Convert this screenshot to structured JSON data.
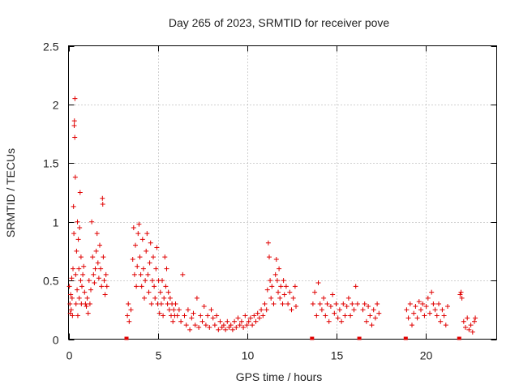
{
  "chart_data": {
    "type": "scatter",
    "title": "Day 265 of 2023, SRMTID for receiver pove",
    "xlabel": "GPS time / hours",
    "ylabel": "SRMTID / TECUs",
    "xlim": [
      0,
      24
    ],
    "ylim": [
      0,
      2.5
    ],
    "x_ticks": [
      0,
      5,
      10,
      15,
      20
    ],
    "y_ticks": [
      0,
      0.5,
      1,
      1.5,
      2,
      2.5
    ],
    "x_tick_labels": [
      "0",
      "5",
      "10",
      "15",
      "20"
    ],
    "y_tick_labels": [
      "0",
      "0.5",
      "1",
      "1.5",
      "2",
      "2.5"
    ],
    "grid": true,
    "marker": "plus",
    "color": "#e00000",
    "gap_markers_x": [
      3.25,
      13.65,
      16.3,
      18.9,
      21.9
    ],
    "series": [
      {
        "name": "SRMTID",
        "points": [
          [
            0.05,
            0.45
          ],
          [
            0.08,
            0.3
          ],
          [
            0.1,
            0.22
          ],
          [
            0.12,
            0.38
          ],
          [
            0.15,
            0.25
          ],
          [
            0.18,
            0.52
          ],
          [
            0.2,
            0.35
          ],
          [
            0.22,
            0.2
          ],
          [
            0.25,
            0.6
          ],
          [
            0.28,
            1.13
          ],
          [
            0.3,
            0.9
          ],
          [
            0.32,
            1.82
          ],
          [
            0.33,
            1.86
          ],
          [
            0.35,
            1.72
          ],
          [
            0.36,
            2.05
          ],
          [
            0.38,
            1.38
          ],
          [
            0.4,
            0.55
          ],
          [
            0.42,
            0.3
          ],
          [
            0.45,
            0.75
          ],
          [
            0.48,
            0.42
          ],
          [
            0.5,
            1.0
          ],
          [
            0.52,
            0.2
          ],
          [
            0.55,
            0.85
          ],
          [
            0.58,
            0.6
          ],
          [
            0.6,
            0.35
          ],
          [
            0.62,
            0.95
          ],
          [
            0.65,
            1.25
          ],
          [
            0.68,
            0.5
          ],
          [
            0.7,
            0.7
          ],
          [
            0.72,
            0.3
          ],
          [
            0.75,
            0.45
          ],
          [
            0.8,
            0.55
          ],
          [
            0.85,
            0.62
          ],
          [
            0.9,
            0.4
          ],
          [
            0.95,
            0.3
          ],
          [
            1.0,
            0.28
          ],
          [
            1.05,
            0.35
          ],
          [
            1.1,
            0.22
          ],
          [
            1.15,
            0.5
          ],
          [
            1.2,
            0.3
          ],
          [
            1.25,
            0.42
          ],
          [
            1.3,
            1.0
          ],
          [
            1.35,
            0.7
          ],
          [
            1.4,
            0.55
          ],
          [
            1.45,
            0.48
          ],
          [
            1.5,
            0.6
          ],
          [
            1.55,
            0.75
          ],
          [
            1.6,
            0.9
          ],
          [
            1.65,
            0.65
          ],
          [
            1.7,
            0.52
          ],
          [
            1.75,
            0.8
          ],
          [
            1.8,
            0.6
          ],
          [
            1.85,
            0.45
          ],
          [
            1.9,
            1.2
          ],
          [
            1.92,
            1.15
          ],
          [
            1.95,
            0.7
          ],
          [
            2.0,
            0.5
          ],
          [
            2.05,
            0.38
          ],
          [
            2.1,
            0.55
          ],
          [
            2.15,
            0.45
          ],
          [
            3.3,
            0.2
          ],
          [
            3.35,
            0.3
          ],
          [
            3.4,
            0.15
          ],
          [
            3.5,
            0.25
          ],
          [
            3.6,
            0.68
          ],
          [
            3.65,
            0.95
          ],
          [
            3.7,
            0.55
          ],
          [
            3.75,
            0.8
          ],
          [
            3.8,
            0.45
          ],
          [
            3.85,
            0.62
          ],
          [
            3.9,
            0.9
          ],
          [
            3.95,
            0.98
          ],
          [
            4.0,
            0.7
          ],
          [
            4.05,
            0.55
          ],
          [
            4.1,
            0.45
          ],
          [
            4.15,
            0.85
          ],
          [
            4.2,
            0.6
          ],
          [
            4.25,
            0.35
          ],
          [
            4.3,
            0.5
          ],
          [
            4.35,
            0.75
          ],
          [
            4.4,
            0.9
          ],
          [
            4.45,
            0.55
          ],
          [
            4.5,
            0.4
          ],
          [
            4.55,
            0.65
          ],
          [
            4.6,
            0.82
          ],
          [
            4.65,
            0.3
          ],
          [
            4.7,
            0.5
          ],
          [
            4.75,
            0.7
          ],
          [
            4.8,
            0.45
          ],
          [
            4.85,
            0.35
          ],
          [
            4.9,
            0.6
          ],
          [
            4.95,
            0.78
          ],
          [
            5.0,
            0.3
          ],
          [
            5.05,
            0.5
          ],
          [
            5.1,
            0.22
          ],
          [
            5.15,
            0.4
          ],
          [
            5.2,
            0.3
          ],
          [
            5.25,
            0.5
          ],
          [
            5.3,
            0.2
          ],
          [
            5.35,
            0.35
          ],
          [
            5.4,
            0.7
          ],
          [
            5.45,
            0.45
          ],
          [
            5.5,
            0.6
          ],
          [
            5.55,
            0.3
          ],
          [
            5.6,
            0.4
          ],
          [
            5.65,
            0.25
          ],
          [
            5.7,
            0.35
          ],
          [
            5.75,
            0.2
          ],
          [
            5.8,
            0.3
          ],
          [
            5.85,
            0.15
          ],
          [
            5.9,
            0.25
          ],
          [
            5.95,
            0.2
          ],
          [
            6.0,
            0.3
          ],
          [
            6.1,
            0.2
          ],
          [
            6.2,
            0.25
          ],
          [
            6.3,
            0.15
          ],
          [
            6.4,
            0.55
          ],
          [
            6.5,
            0.2
          ],
          [
            6.6,
            0.12
          ],
          [
            6.7,
            0.25
          ],
          [
            6.8,
            0.08
          ],
          [
            6.9,
            0.18
          ],
          [
            7.0,
            0.22
          ],
          [
            7.1,
            0.12
          ],
          [
            7.2,
            0.35
          ],
          [
            7.3,
            0.1
          ],
          [
            7.4,
            0.2
          ],
          [
            7.5,
            0.15
          ],
          [
            7.6,
            0.28
          ],
          [
            7.7,
            0.12
          ],
          [
            7.8,
            0.2
          ],
          [
            7.9,
            0.1
          ],
          [
            8.0,
            0.25
          ],
          [
            8.1,
            0.18
          ],
          [
            8.2,
            0.12
          ],
          [
            8.3,
            0.2
          ],
          [
            8.4,
            0.08
          ],
          [
            8.5,
            0.15
          ],
          [
            8.6,
            0.1
          ],
          [
            8.7,
            0.12
          ],
          [
            8.8,
            0.08
          ],
          [
            8.9,
            0.15
          ],
          [
            9.0,
            0.1
          ],
          [
            9.1,
            0.12
          ],
          [
            9.2,
            0.08
          ],
          [
            9.3,
            0.15
          ],
          [
            9.4,
            0.1
          ],
          [
            9.5,
            0.18
          ],
          [
            9.6,
            0.12
          ],
          [
            9.7,
            0.15
          ],
          [
            9.8,
            0.1
          ],
          [
            9.9,
            0.2
          ],
          [
            10.0,
            0.12
          ],
          [
            10.1,
            0.15
          ],
          [
            10.2,
            0.18
          ],
          [
            10.3,
            0.12
          ],
          [
            10.4,
            0.2
          ],
          [
            10.5,
            0.15
          ],
          [
            10.6,
            0.22
          ],
          [
            10.7,
            0.18
          ],
          [
            10.8,
            0.25
          ],
          [
            10.9,
            0.2
          ],
          [
            11.0,
            0.3
          ],
          [
            11.1,
            0.25
          ],
          [
            11.15,
            0.42
          ],
          [
            11.2,
            0.82
          ],
          [
            11.25,
            0.7
          ],
          [
            11.3,
            0.5
          ],
          [
            11.35,
            0.35
          ],
          [
            11.4,
            0.45
          ],
          [
            11.5,
            0.3
          ],
          [
            11.6,
            0.55
          ],
          [
            11.65,
            0.68
          ],
          [
            11.7,
            0.5
          ],
          [
            11.75,
            0.4
          ],
          [
            11.8,
            0.6
          ],
          [
            11.85,
            0.35
          ],
          [
            11.9,
            0.45
          ],
          [
            12.0,
            0.3
          ],
          [
            12.05,
            0.5
          ],
          [
            12.1,
            0.38
          ],
          [
            12.2,
            0.45
          ],
          [
            12.3,
            0.3
          ],
          [
            12.4,
            0.4
          ],
          [
            12.5,
            0.25
          ],
          [
            12.6,
            0.35
          ],
          [
            12.7,
            0.45
          ],
          [
            12.75,
            0.28
          ],
          [
            13.7,
            0.3
          ],
          [
            13.8,
            0.4
          ],
          [
            13.9,
            0.2
          ],
          [
            14.0,
            0.48
          ],
          [
            14.1,
            0.3
          ],
          [
            14.2,
            0.25
          ],
          [
            14.3,
            0.35
          ],
          [
            14.4,
            0.2
          ],
          [
            14.5,
            0.3
          ],
          [
            14.6,
            0.15
          ],
          [
            14.7,
            0.28
          ],
          [
            14.8,
            0.38
          ],
          [
            14.9,
            0.22
          ],
          [
            15.0,
            0.3
          ],
          [
            15.1,
            0.18
          ],
          [
            15.2,
            0.25
          ],
          [
            15.3,
            0.15
          ],
          [
            15.4,
            0.3
          ],
          [
            15.5,
            0.2
          ],
          [
            15.6,
            0.28
          ],
          [
            15.7,
            0.35
          ],
          [
            15.8,
            0.2
          ],
          [
            15.9,
            0.3
          ],
          [
            16.0,
            0.25
          ],
          [
            16.1,
            0.45
          ],
          [
            16.2,
            0.3
          ],
          [
            16.5,
            0.25
          ],
          [
            16.6,
            0.3
          ],
          [
            16.7,
            0.15
          ],
          [
            16.8,
            0.28
          ],
          [
            16.9,
            0.2
          ],
          [
            17.0,
            0.12
          ],
          [
            17.1,
            0.25
          ],
          [
            17.2,
            0.18
          ],
          [
            17.3,
            0.3
          ],
          [
            17.4,
            0.22
          ],
          [
            18.95,
            0.25
          ],
          [
            19.05,
            0.18
          ],
          [
            19.15,
            0.3
          ],
          [
            19.25,
            0.12
          ],
          [
            19.35,
            0.22
          ],
          [
            19.45,
            0.28
          ],
          [
            19.55,
            0.18
          ],
          [
            19.65,
            0.32
          ],
          [
            19.75,
            0.25
          ],
          [
            19.85,
            0.3
          ],
          [
            19.95,
            0.2
          ],
          [
            20.05,
            0.28
          ],
          [
            20.15,
            0.35
          ],
          [
            20.25,
            0.22
          ],
          [
            20.35,
            0.4
          ],
          [
            20.45,
            0.3
          ],
          [
            20.55,
            0.25
          ],
          [
            20.65,
            0.2
          ],
          [
            20.75,
            0.3
          ],
          [
            20.85,
            0.15
          ],
          [
            20.95,
            0.25
          ],
          [
            21.05,
            0.2
          ],
          [
            21.15,
            0.12
          ],
          [
            21.25,
            0.28
          ],
          [
            21.95,
            0.38
          ],
          [
            22.0,
            0.4
          ],
          [
            22.05,
            0.35
          ],
          [
            22.15,
            0.15
          ],
          [
            22.25,
            0.1
          ],
          [
            22.35,
            0.18
          ],
          [
            22.45,
            0.08
          ],
          [
            22.55,
            0.12
          ],
          [
            22.65,
            0.06
          ],
          [
            22.75,
            0.15
          ],
          [
            22.8,
            0.18
          ]
        ]
      }
    ]
  }
}
